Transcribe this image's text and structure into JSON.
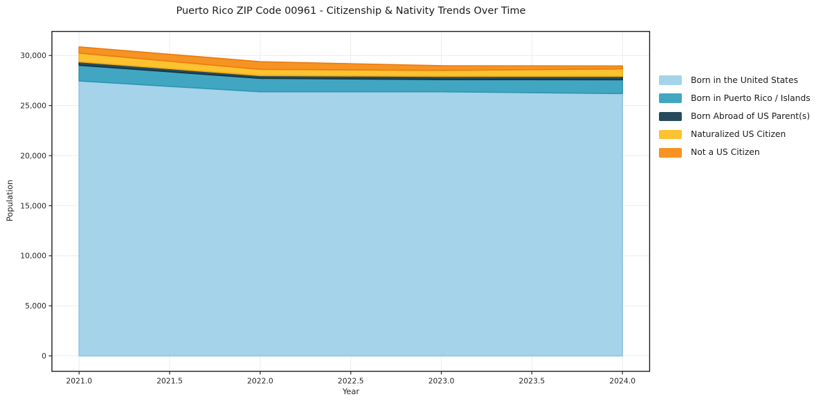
{
  "title": "Puerto Rico ZIP Code 00961 - Citizenship & Nativity Trends Over Time",
  "chart_data": {
    "type": "area",
    "stacked": true,
    "title": "Puerto Rico ZIP Code 00961 - Citizenship & Nativity Trends Over Time",
    "xlabel": "Year",
    "ylabel": "Population",
    "x": [
      2021,
      2022,
      2023,
      2024
    ],
    "x_ticks": [
      2021.0,
      2021.5,
      2022.0,
      2022.5,
      2023.0,
      2023.5,
      2024.0
    ],
    "y_ticks": [
      0,
      5000,
      10000,
      15000,
      20000,
      25000,
      30000
    ],
    "xlim": [
      2020.85,
      2024.15
    ],
    "ylim": [
      -1543,
      32403
    ],
    "grid": true,
    "legend_position": "right",
    "series": [
      {
        "id": "born-us",
        "name": "Born in the United States",
        "color": "#a5d3e9",
        "edge_color": "#8ec6e2",
        "values": [
          27460,
          26380,
          26380,
          26200
        ]
      },
      {
        "id": "born-pr-islands",
        "name": "Born in Puerto Rico / Islands",
        "color": "#41a6c2",
        "edge_color": "#2d96b5",
        "values": [
          1570,
          1340,
          1220,
          1380
        ]
      },
      {
        "id": "born-abroad",
        "name": "Born Abroad of US Parent(s)",
        "color": "#254b5c",
        "edge_color": "#16333f",
        "values": [
          340,
          280,
          320,
          340
        ]
      },
      {
        "id": "naturalized",
        "name": "Naturalized US Citizen",
        "color": "#fcc230",
        "edge_color": "#f2ab16",
        "values": [
          870,
          620,
          600,
          750
        ]
      },
      {
        "id": "not-citizen",
        "name": "Not a US Citizen",
        "color": "#f79322",
        "edge_color": "#ea7d11",
        "values": [
          620,
          760,
          460,
          290
        ]
      }
    ],
    "colors": {
      "grid": "#ececec",
      "spine": "#1a1a1a",
      "tick": "#262626",
      "tick_label": "#262626",
      "background": "#ffffff"
    }
  }
}
